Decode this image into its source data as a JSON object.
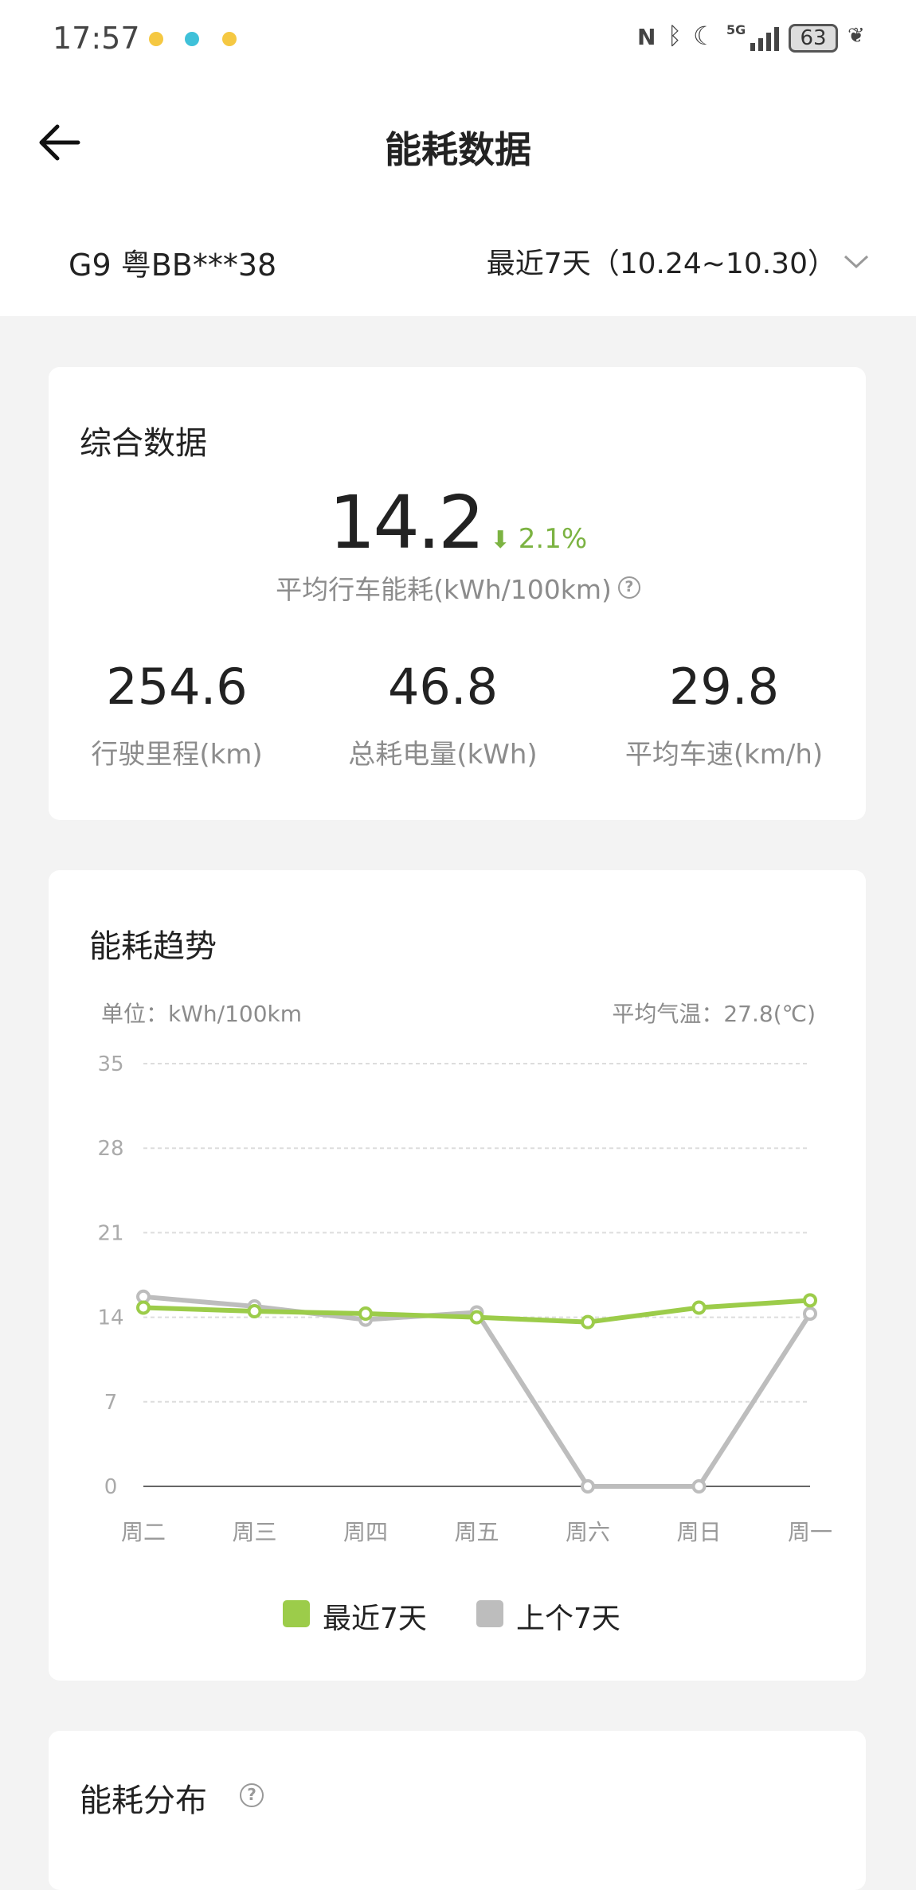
{
  "status_bar": {
    "time": "17:57",
    "network": "5G",
    "battery": "63"
  },
  "header": {
    "title": "能耗数据"
  },
  "vehicle": {
    "name": "G9 粤BB***38",
    "period": "最近7天（10.24~10.30）"
  },
  "summary": {
    "title": "综合数据",
    "avg_consumption": "14.2",
    "change": "2.1%",
    "change_direction": "down",
    "avg_label": "平均行车能耗(kWh/100km)",
    "stats": [
      {
        "value": "254.6",
        "label": "行驶里程(km)"
      },
      {
        "value": "46.8",
        "label": "总耗电量(kWh)"
      },
      {
        "value": "29.8",
        "label": "平均车速(km/h)"
      }
    ]
  },
  "trend": {
    "title": "能耗趋势",
    "unit": "单位：kWh/100km",
    "temp": "平均气温：27.8(℃)"
  },
  "chart_data": {
    "type": "line",
    "categories": [
      "周二",
      "周三",
      "周四",
      "周五",
      "周六",
      "周日",
      "周一"
    ],
    "yticks": [
      "0",
      "7",
      "14",
      "21",
      "28",
      "35"
    ],
    "ylim": [
      0,
      35
    ],
    "grid": true,
    "legend": "bottom",
    "series": [
      {
        "name": "最近7天",
        "color": "#9ccc4a",
        "values": [
          14.8,
          14.5,
          14.3,
          14.0,
          13.6,
          14.8,
          15.4
        ]
      },
      {
        "name": "上个7天",
        "color": "#bdbdbd",
        "values": [
          15.7,
          14.9,
          13.8,
          14.4,
          0,
          0,
          14.3
        ]
      }
    ]
  },
  "distribution": {
    "title": "能耗分布"
  }
}
